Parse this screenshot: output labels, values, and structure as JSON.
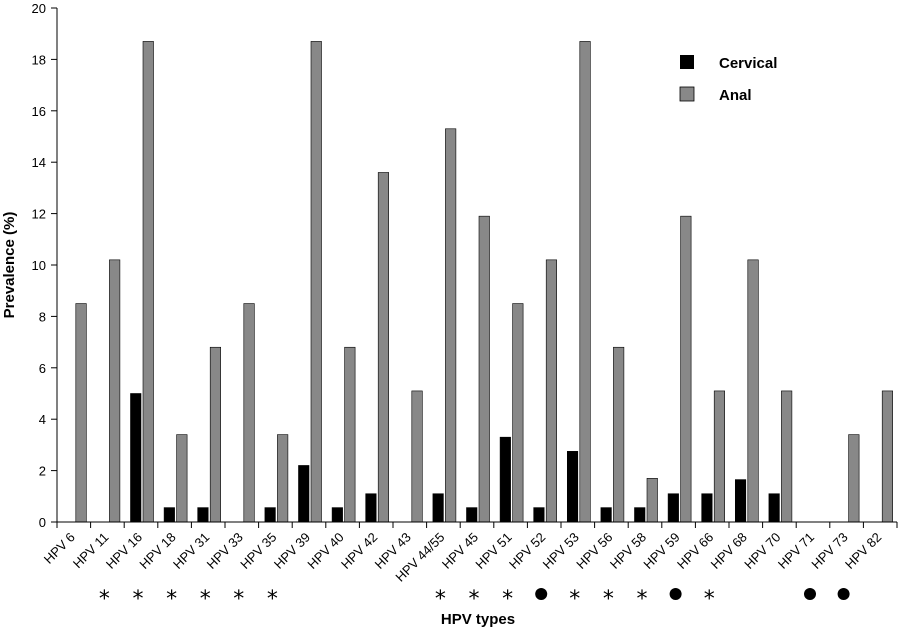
{
  "chart_data": {
    "type": "bar",
    "xlabel": "HPV types",
    "ylabel": "Prevalence (%)",
    "ylim": [
      0,
      20
    ],
    "yticks": [
      0,
      2,
      4,
      6,
      8,
      10,
      12,
      14,
      16,
      18,
      20
    ],
    "categories": [
      "HPV 6",
      "HPV 11",
      "HPV 16",
      "HPV 18",
      "HPV 31",
      "HPV 33",
      "HPV 35",
      "HPV 39",
      "HPV 40",
      "HPV 42",
      "HPV 43",
      "HPV 44/55",
      "HPV 45",
      "HPV 51",
      "HPV 52",
      "HPV 53",
      "HPV 56",
      "HPV 58",
      "HPV 59",
      "HPV 66",
      "HPV 68",
      "HPV 70",
      "HPV 71",
      "HPV 73",
      "HPV 82"
    ],
    "series": [
      {
        "name": "Cervical",
        "color": "#000000",
        "values": [
          0,
          0,
          5.0,
          0.56,
          0.56,
          0,
          0.56,
          2.2,
          0.56,
          1.1,
          0,
          1.1,
          0.56,
          3.3,
          0.56,
          2.75,
          0.56,
          0.56,
          1.1,
          1.1,
          1.65,
          1.1,
          0,
          0,
          0
        ]
      },
      {
        "name": "Anal",
        "color": "#888888",
        "values": [
          8.5,
          10.2,
          18.7,
          3.4,
          6.8,
          8.5,
          3.4,
          18.7,
          6.8,
          13.6,
          5.1,
          15.3,
          11.9,
          8.5,
          10.2,
          18.7,
          6.8,
          1.7,
          11.9,
          5.1,
          10.2,
          5.1,
          0,
          3.4,
          5.1
        ]
      }
    ],
    "markers": [
      "",
      "*",
      "*",
      "*",
      "*",
      "*",
      "*",
      "",
      "",
      "",
      "",
      "*",
      "*",
      "*",
      "circle",
      "*",
      "*",
      "*",
      "circle",
      "*",
      "",
      "",
      "circle",
      "circle",
      ""
    ],
    "legend_position": "top-right",
    "grid": false
  }
}
